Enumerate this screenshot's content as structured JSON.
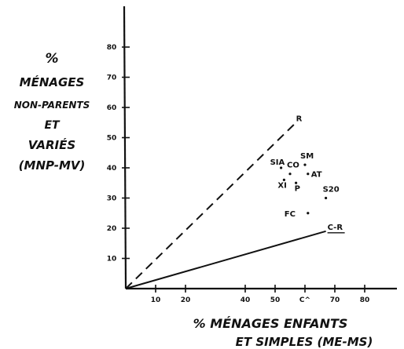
{
  "chart_data": {
    "type": "scatter",
    "title": "",
    "ylabel_lines": [
      "%",
      "MÉNAGES",
      "NON-PARENTS",
      "ET",
      "VARIÉS",
      "(MNP-MV)"
    ],
    "xlabel_lines": [
      "% MÉNAGES ENFANTS",
      "ET SIMPLES (ME-MS)"
    ],
    "xlim": [
      0,
      85
    ],
    "ylim": [
      0,
      90
    ],
    "xticks": [
      10,
      20,
      40,
      50,
      60,
      70,
      80
    ],
    "xtick_labels": [
      "10",
      "20",
      "40",
      "50",
      "C^",
      "70",
      "80"
    ],
    "yticks": [
      10,
      20,
      30,
      40,
      50,
      60,
      70,
      80
    ],
    "ytick_labels": [
      "10",
      "20",
      "30",
      "40",
      "50",
      "60",
      "70",
      "80"
    ],
    "grid": false,
    "series": [
      {
        "style": "dashed",
        "points": [
          {
            "x": 0,
            "y": 0
          },
          {
            "x": 57,
            "y": 55
          }
        ],
        "end_label": "R"
      },
      {
        "style": "solid",
        "points": [
          {
            "x": 0,
            "y": 0
          },
          {
            "x": 67,
            "y": 19
          }
        ],
        "end_label": "C-R"
      }
    ],
    "points": [
      {
        "label": "SIA",
        "x": 52,
        "y": 40
      },
      {
        "label": "CO",
        "x": 55,
        "y": 38
      },
      {
        "label": "XI",
        "x": 53,
        "y": 36
      },
      {
        "label": "SM",
        "x": 60,
        "y": 41
      },
      {
        "label": "AT",
        "x": 61,
        "y": 38
      },
      {
        "label": "P",
        "x": 57,
        "y": 35
      },
      {
        "label": "S20",
        "x": 67,
        "y": 30
      },
      {
        "label": "FC",
        "x": 61,
        "y": 25
      }
    ]
  }
}
